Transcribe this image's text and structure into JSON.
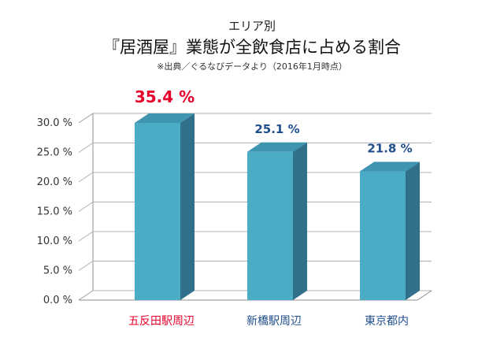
{
  "header": {
    "line1": "エリア別",
    "line2": "『居酒屋』業態が全飲食店に占める割合",
    "line3": "※出典／ぐるなびデータより（2016年1月時点）"
  },
  "colors": {
    "bar_front": "#4bacc6",
    "bar_side": "#31708a",
    "bar_top": "#3f95b0",
    "highlight": "#e8002a",
    "normal_label": "#1f4e8c",
    "grid": "#b0b0b0"
  },
  "chart_data": {
    "type": "bar",
    "categories": [
      "五反田駅周辺",
      "新橋駅周辺",
      "東京都内"
    ],
    "values": [
      35.4,
      25.1,
      21.8
    ],
    "value_labels": [
      "35.4 %",
      "25.1 %",
      "21.8 %"
    ],
    "highlight_index": 0,
    "ylim": [
      0,
      30
    ],
    "yticks": [
      0,
      5,
      10,
      15,
      20,
      25,
      30
    ],
    "ytick_labels": [
      "0.0 %",
      "5.0 %",
      "10.0 %",
      "15.0 %",
      "20.0 %",
      "25.0 %",
      "30.0 %"
    ],
    "grid": true,
    "style": "3d-bar"
  }
}
